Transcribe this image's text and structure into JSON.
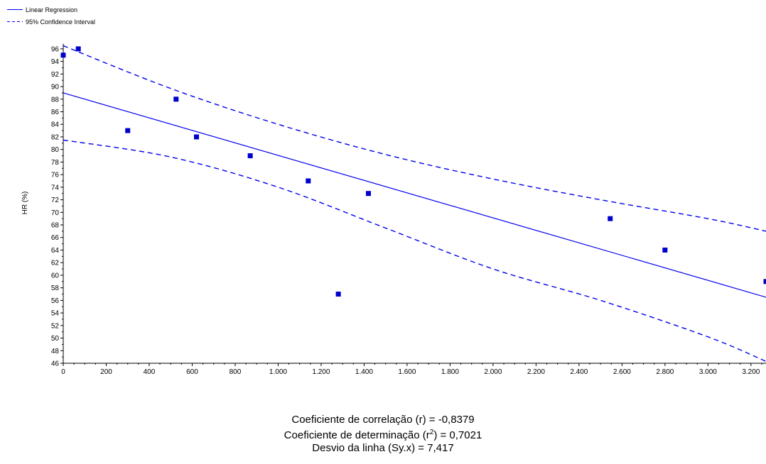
{
  "chart_data": {
    "type": "scatter",
    "ylabel": "HR (%)",
    "xlabel": "",
    "xlim": [
      0,
      3270
    ],
    "ylim": [
      46,
      97
    ],
    "x_ticks": [
      0,
      200,
      400,
      600,
      800,
      1000,
      1200,
      1400,
      1600,
      1800,
      2000,
      2200,
      2400,
      2600,
      2800,
      3000,
      3200
    ],
    "x_tick_labels": [
      "0",
      "200",
      "400",
      "600",
      "800",
      "1.000",
      "1.200",
      "1.400",
      "1.600",
      "1.800",
      "2.000",
      "2.200",
      "2.400",
      "2.600",
      "2.800",
      "3.000",
      "3.200"
    ],
    "y_ticks": [
      46,
      48,
      50,
      52,
      54,
      56,
      58,
      60,
      62,
      64,
      66,
      68,
      70,
      72,
      74,
      76,
      78,
      80,
      82,
      84,
      86,
      88,
      90,
      92,
      94,
      96
    ],
    "points": [
      {
        "x": 0,
        "y": 95
      },
      {
        "x": 70,
        "y": 96
      },
      {
        "x": 300,
        "y": 83
      },
      {
        "x": 525,
        "y": 88
      },
      {
        "x": 620,
        "y": 82
      },
      {
        "x": 870,
        "y": 79
      },
      {
        "x": 1140,
        "y": 75
      },
      {
        "x": 1280,
        "y": 57
      },
      {
        "x": 1420,
        "y": 73
      },
      {
        "x": 2545,
        "y": 69
      },
      {
        "x": 2800,
        "y": 64
      },
      {
        "x": 3270,
        "y": 59
      }
    ],
    "regression_line": [
      {
        "x": 0,
        "y": 89.0
      },
      {
        "x": 3270,
        "y": 56.5
      }
    ],
    "confidence_upper": [
      {
        "x": 0,
        "y": 96.5
      },
      {
        "x": 500,
        "y": 89.7
      },
      {
        "x": 1000,
        "y": 84.0
      },
      {
        "x": 1500,
        "y": 79.2
      },
      {
        "x": 2000,
        "y": 75.3
      },
      {
        "x": 2500,
        "y": 72.0
      },
      {
        "x": 3000,
        "y": 69.0
      },
      {
        "x": 3270,
        "y": 67.0
      }
    ],
    "confidence_lower": [
      {
        "x": 0,
        "y": 81.5
      },
      {
        "x": 500,
        "y": 78.8
      },
      {
        "x": 1000,
        "y": 74.0
      },
      {
        "x": 1500,
        "y": 67.5
      },
      {
        "x": 2000,
        "y": 61.0
      },
      {
        "x": 2500,
        "y": 56.0
      },
      {
        "x": 3000,
        "y": 50.2
      },
      {
        "x": 3270,
        "y": 46.3
      }
    ],
    "legend": {
      "position": "top-left",
      "entries": [
        {
          "label": "Linear Regression",
          "style": "solid"
        },
        {
          "label": "95% Confidence Interval",
          "style": "dashed"
        }
      ]
    },
    "grid": false,
    "colors": {
      "line": "#0000ee",
      "points": "#0000cc",
      "axis": "#000000"
    }
  },
  "stats": {
    "correlation": "Coeficiente de correlação (r) = -0,8379",
    "determination_prefix": "Coeficiente de determinação (r",
    "determination_sup": "2",
    "determination_suffix": ") = 0,7021",
    "deviation": "Desvio da linha (Sy.x) = 7,417"
  }
}
